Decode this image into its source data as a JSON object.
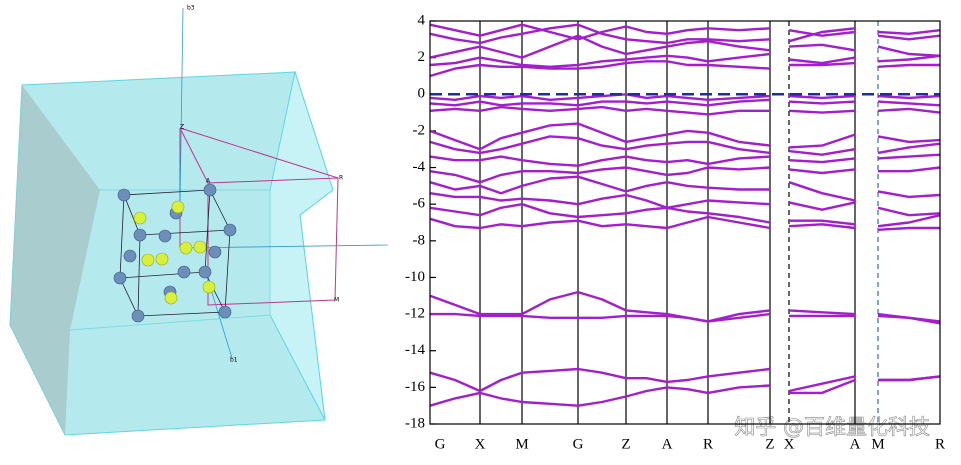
{
  "figure": {
    "labels": [
      "b3",
      "b1",
      "Z",
      "A",
      "R",
      "M"
    ]
  },
  "watermark": "知乎 @百维量化科技",
  "chart_data": {
    "type": "line",
    "x": [
      0,
      0.5,
      1,
      1.42,
      1.84,
      2.4,
      2.96,
      3.44,
      3.92,
      4.33,
      4.74,
      5.15,
      5.56,
      6.18,
      6.8,
      7.0,
      7.18,
      7.84,
      8.5,
      8.73,
      8.96,
      9.58,
      10.2
    ],
    "color": "#a21fcb",
    "series": [
      {
        "values": [
          3.8,
          3.5,
          3.2,
          3.5,
          3.8,
          3.4,
          3.0,
          3.4,
          3.7,
          3.4,
          3.3,
          3.5,
          3.6,
          3.5,
          3.6,
          null,
          3.5,
          3.2,
          3.4,
          null,
          3.4,
          3.3,
          3.5
        ]
      },
      {
        "values": [
          3.3,
          3.0,
          2.8,
          3.1,
          3.3,
          3.6,
          3.8,
          3.3,
          3.0,
          2.9,
          2.8,
          3.0,
          3.0,
          2.9,
          3.0,
          null,
          2.9,
          3.4,
          3.6,
          null,
          3.2,
          3.0,
          3.2
        ]
      },
      {
        "values": [
          2.0,
          2.3,
          2.6,
          2.3,
          2.0,
          2.6,
          3.2,
          2.6,
          2.2,
          2.4,
          2.6,
          2.8,
          2.9,
          2.6,
          2.4,
          null,
          2.6,
          2.7,
          2.4,
          null,
          2.6,
          2.2,
          2.1
        ]
      },
      {
        "values": [
          1.6,
          1.7,
          2.0,
          1.8,
          1.6,
          1.5,
          1.6,
          1.8,
          1.9,
          2.0,
          2.1,
          2.0,
          1.8,
          2.0,
          2.2,
          null,
          1.9,
          1.7,
          2.0,
          null,
          1.8,
          1.9,
          2.1
        ]
      },
      {
        "values": [
          1.0,
          1.4,
          1.6,
          1.5,
          1.5,
          1.4,
          1.4,
          1.5,
          1.7,
          1.8,
          1.8,
          1.6,
          1.6,
          1.5,
          1.4,
          null,
          1.6,
          1.6,
          1.7,
          null,
          1.5,
          1.6,
          1.6
        ]
      },
      {
        "values": [
          -0.2,
          -0.3,
          -0.1,
          -0.2,
          -0.1,
          -0.3,
          -0.2,
          -0.1,
          0,
          -0.2,
          -0.1,
          -0.2,
          -0.3,
          -0.2,
          -0.1,
          null,
          -0.1,
          -0.2,
          -0.1,
          null,
          -0.1,
          -0.2,
          -0.1
        ]
      },
      {
        "values": [
          -0.5,
          -0.6,
          -0.4,
          -0.6,
          -0.5,
          -0.5,
          -0.6,
          -0.4,
          -0.4,
          -0.5,
          -0.4,
          -0.5,
          -0.6,
          -0.4,
          -0.3,
          null,
          -0.4,
          -0.5,
          -0.4,
          null,
          -0.4,
          -0.5,
          -0.6
        ]
      },
      {
        "values": [
          -0.9,
          -0.8,
          -0.9,
          -0.7,
          -0.8,
          -0.9,
          -0.8,
          -0.7,
          -0.9,
          -0.8,
          -0.9,
          -1.0,
          -1.1,
          -0.9,
          -0.9,
          null,
          -0.9,
          -1.0,
          -0.9,
          null,
          -0.9,
          -0.8,
          -1.0
        ]
      },
      {
        "values": [
          -2.0,
          -2.5,
          -3.0,
          -2.4,
          -2.1,
          -1.7,
          -1.6,
          -2.1,
          -2.6,
          -2.4,
          -2.2,
          -2.0,
          -2.1,
          -2.6,
          -2.8,
          null,
          -2.9,
          -2.8,
          -2.2,
          null,
          -2.3,
          -2.6,
          -2.5
        ]
      },
      {
        "values": [
          -2.6,
          -3.0,
          -3.2,
          -3.0,
          -2.7,
          -2.3,
          -2.4,
          -2.8,
          -3.0,
          -2.8,
          -2.7,
          -2.6,
          -2.6,
          -3.0,
          -3.2,
          null,
          -3.1,
          -3.3,
          -3.0,
          null,
          -3.2,
          -2.9,
          -2.7
        ]
      },
      {
        "values": [
          -3.4,
          -3.6,
          -3.6,
          -3.4,
          -3.6,
          -3.8,
          -3.9,
          -3.6,
          -3.4,
          -3.6,
          -3.7,
          -3.6,
          -3.8,
          -3.5,
          -3.4,
          null,
          -3.6,
          -3.7,
          -3.5,
          null,
          -3.5,
          -3.4,
          -3.3
        ]
      },
      {
        "values": [
          -4.2,
          -4.4,
          -4.8,
          -4.4,
          -4.2,
          -4.2,
          -4.3,
          -4.1,
          -4.0,
          -4.2,
          -4.4,
          -4.3,
          -4.0,
          -4.1,
          -4.0,
          null,
          -4.1,
          -4.3,
          -4.1,
          null,
          -4.2,
          -4.2,
          -4.0
        ]
      },
      {
        "values": [
          -4.8,
          -5.2,
          -5.0,
          -5.4,
          -5.0,
          -4.6,
          -4.5,
          -4.9,
          -5.3,
          -5.0,
          -4.8,
          -5.0,
          -5.1,
          -5.2,
          -5.2,
          null,
          -4.8,
          -5.4,
          -5.8,
          null,
          -5.3,
          -5.6,
          -5.5
        ]
      },
      {
        "values": [
          -5.4,
          -5.6,
          -5.6,
          -5.8,
          -5.7,
          -5.8,
          -6.0,
          -5.7,
          -5.5,
          -5.8,
          -6.2,
          -6.0,
          -5.8,
          -5.9,
          -6.0,
          null,
          -5.9,
          -6.3,
          -5.9,
          null,
          -6.2,
          -6.6,
          -6.5
        ]
      },
      {
        "values": [
          -6.2,
          -6.4,
          -6.6,
          -6.2,
          -6.0,
          -6.5,
          -6.7,
          -6.6,
          -6.5,
          -6.3,
          -6.2,
          -6.4,
          -6.5,
          -6.7,
          -7.0,
          null,
          -6.9,
          -6.9,
          -7.1,
          null,
          -7.2,
          -7.0,
          -6.6
        ]
      },
      {
        "values": [
          -6.8,
          -7.2,
          -7.3,
          -7.1,
          -7.2,
          -7.0,
          -6.9,
          -7.2,
          -7.1,
          -7.2,
          -7.3,
          -7.0,
          -6.7,
          -7.0,
          -7.3,
          null,
          -7.2,
          -7.1,
          -7.3,
          null,
          -7.4,
          -7.3,
          -7.3
        ]
      },
      {
        "values": [
          -11.0,
          -11.5,
          -12.0,
          -12.0,
          -12.0,
          -11.2,
          -10.8,
          -11.2,
          -11.8,
          -11.9,
          -12.0,
          -12.2,
          -12.4,
          -12.0,
          -11.8,
          null,
          -11.8,
          -11.9,
          -12.0,
          null,
          -12.0,
          -12.2,
          -12.4
        ]
      },
      {
        "values": [
          -12.0,
          -12.0,
          -12.1,
          -12.1,
          -12.1,
          -12.2,
          -12.2,
          -12.2,
          -12.1,
          -12.1,
          -12.1,
          -12.2,
          -12.4,
          -12.2,
          -12.0,
          null,
          -12.1,
          -12.1,
          -12.1,
          null,
          -12.1,
          -12.2,
          -12.5
        ]
      },
      {
        "values": [
          -15.2,
          -15.6,
          -16.2,
          -15.6,
          -15.2,
          -15.1,
          -15.0,
          -15.2,
          -15.5,
          -15.5,
          -15.7,
          -15.6,
          -15.4,
          -15.2,
          -15.0,
          null,
          -16.2,
          -15.8,
          -15.4,
          null,
          -15.6,
          -15.6,
          -15.4
        ]
      },
      {
        "values": [
          -17.0,
          -16.6,
          -16.3,
          -16.6,
          -16.8,
          -16.9,
          -17.0,
          -16.8,
          -16.5,
          -16.2,
          -16.0,
          -16.1,
          -16.3,
          -16.0,
          -15.9,
          null,
          -16.3,
          -16.3,
          -15.6,
          null,
          -15.6,
          -15.6,
          -15.4
        ]
      }
    ],
    "xlim": [
      0,
      10.2
    ],
    "xticks": [
      {
        "value": 0,
        "label": "G"
      },
      {
        "value": 1,
        "label": "X"
      },
      {
        "value": 1.84,
        "label": "M"
      },
      {
        "value": 2.96,
        "label": "G"
      },
      {
        "value": 3.92,
        "label": "Z"
      },
      {
        "value": 4.74,
        "label": "A"
      },
      {
        "value": 5.56,
        "label": "R"
      },
      {
        "value": 6.8,
        "label": "Z"
      },
      {
        "value": 7.18,
        "label": "X"
      },
      {
        "value": 8.5,
        "label": "A"
      },
      {
        "value": 8.96,
        "label": "M"
      },
      {
        "value": 10.2,
        "label": "R"
      }
    ],
    "breaks": [
      {
        "value": 7.18,
        "color": "#000000"
      },
      {
        "value": 8.96,
        "color": "#2a6faf"
      }
    ],
    "fermi_level": {
      "value": 0,
      "color": "#1a2ea8"
    },
    "ylim": [
      -18,
      4
    ],
    "yticks": [
      -18,
      -16,
      -14,
      -12,
      -10,
      -8,
      -6,
      -4,
      -2,
      0,
      2,
      4
    ]
  }
}
